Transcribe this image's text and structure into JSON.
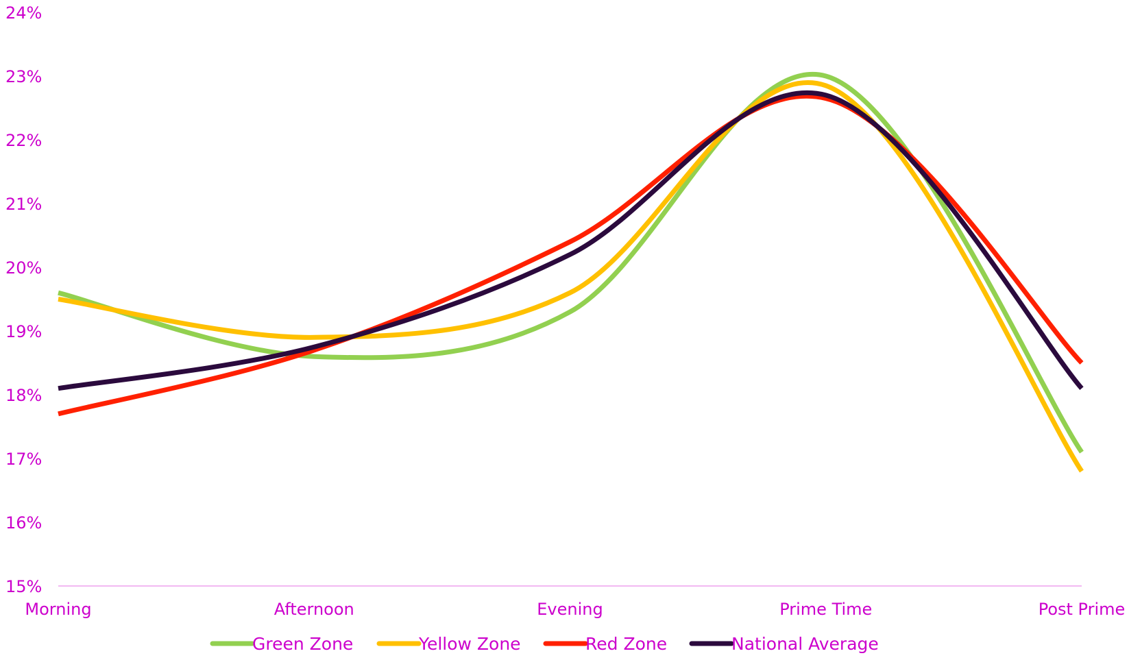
{
  "chart_data": {
    "type": "line",
    "title": "",
    "xlabel": "",
    "ylabel": "",
    "categories": [
      "Morning",
      "Afternoon",
      "Evening",
      "Prime Time",
      "Post Prime"
    ],
    "ylim": [
      15,
      24
    ],
    "y_ticks": [
      "15%",
      "16%",
      "17%",
      "18%",
      "19%",
      "20%",
      "21%",
      "22%",
      "23%",
      "24%"
    ],
    "smooth": true,
    "grid": false,
    "legend_position": "bottom",
    "axis_color": "#f2b8f2",
    "label_color": "#cc00cc",
    "series": [
      {
        "name": "Green Zone",
        "color": "#92d050",
        "values": [
          19.6,
          18.6,
          19.3,
          23.0,
          17.1
        ]
      },
      {
        "name": "Yellow Zone",
        "color": "#ffc000",
        "values": [
          19.5,
          18.9,
          19.6,
          22.85,
          16.8
        ]
      },
      {
        "name": "Red Zone",
        "color": "#ff2000",
        "values": [
          17.7,
          18.7,
          20.4,
          22.65,
          18.5
        ]
      },
      {
        "name": "National Average",
        "color": "#2b0a3d",
        "values": [
          18.1,
          18.75,
          20.2,
          22.7,
          18.1
        ]
      }
    ]
  }
}
